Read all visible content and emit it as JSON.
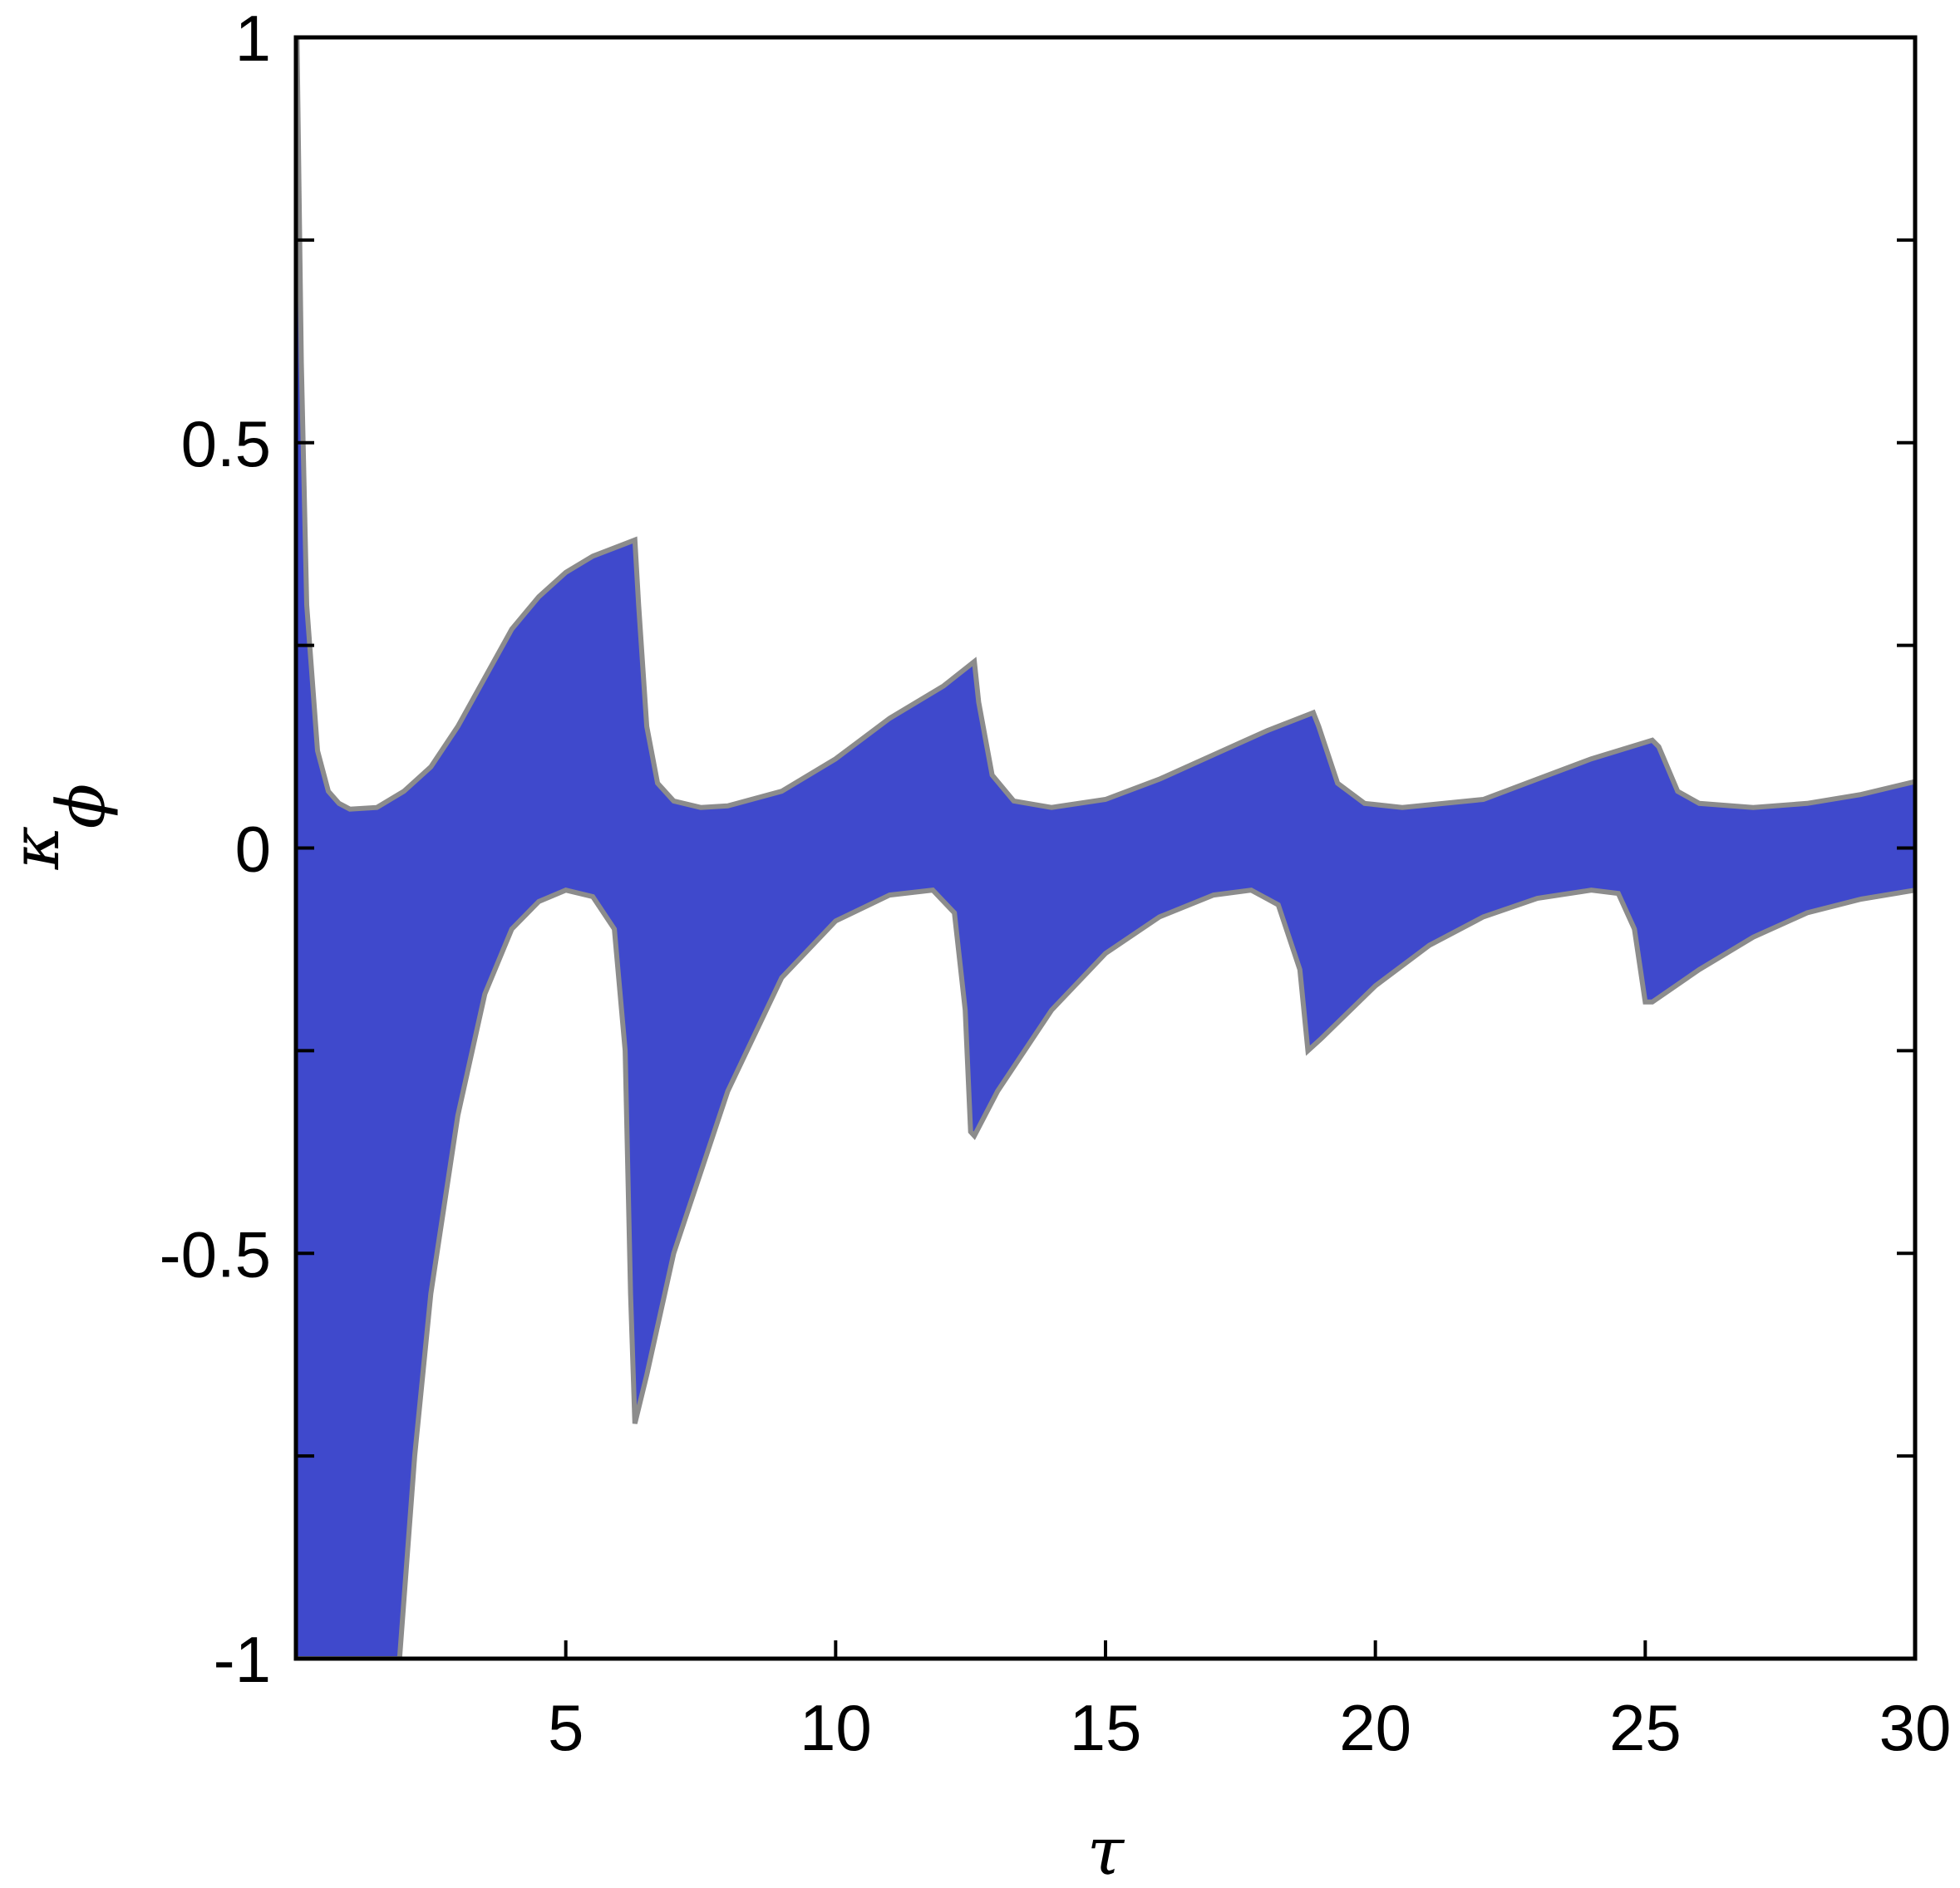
{
  "chart_data": {
    "type": "area",
    "title": "",
    "xlabel": "τ",
    "ylabel": "κ",
    "ylabel_sub": "ϕ",
    "xlim": [
      0,
      30
    ],
    "ylim": [
      -1,
      1
    ],
    "x_ticks": [
      5,
      10,
      15,
      20,
      25,
      30
    ],
    "x_tick_labels": [
      "5",
      "10",
      "15",
      "20",
      "25",
      "30"
    ],
    "y_ticks": [
      1,
      0.5,
      0,
      -0.5,
      -1
    ],
    "y_tick_labels": [
      "1",
      "0.5",
      "0",
      "-0.5",
      "-1"
    ],
    "y_minor_ticks": [
      0.75,
      0.25,
      -0.25,
      -0.75
    ],
    "grid": false,
    "fill_color": "#3f49cc",
    "edge_color": "#8c8c8c",
    "upper": {
      "x": [
        0.02,
        0.1,
        0.2,
        0.4,
        0.6,
        0.8,
        1,
        1.5,
        2,
        2.5,
        3,
        3.5,
        4,
        4.5,
        5,
        5.5,
        6.28,
        6.35,
        6.5,
        6.7,
        7,
        7.5,
        8,
        9,
        10,
        11,
        12,
        12.57,
        12.65,
        12.9,
        13.3,
        14,
        15,
        16,
        17,
        18,
        18.85,
        18.95,
        19.3,
        19.8,
        20.5,
        22,
        23,
        24,
        25.13,
        25.25,
        25.6,
        26,
        27,
        28,
        29,
        30
      ],
      "y": [
        1,
        0.6,
        0.3,
        0.12,
        0.07,
        0.055,
        0.048,
        0.05,
        0.07,
        0.1,
        0.15,
        0.21,
        0.27,
        0.31,
        0.34,
        0.36,
        0.38,
        0.3,
        0.15,
        0.08,
        0.058,
        0.05,
        0.052,
        0.07,
        0.11,
        0.16,
        0.2,
        0.23,
        0.18,
        0.09,
        0.058,
        0.05,
        0.06,
        0.085,
        0.115,
        0.145,
        0.167,
        0.15,
        0.08,
        0.055,
        0.05,
        0.06,
        0.085,
        0.11,
        0.133,
        0.125,
        0.07,
        0.055,
        0.05,
        0.055,
        0.066,
        0.082
      ]
    },
    "lower": {
      "x": [
        0,
        1.92,
        2.2,
        2.5,
        3,
        3.5,
        4,
        4.5,
        5,
        5.5,
        5.9,
        6.1,
        6.2,
        6.28,
        6.5,
        7,
        8,
        9,
        10,
        11,
        11.8,
        12.2,
        12.4,
        12.5,
        12.57,
        13,
        14,
        15,
        16,
        17,
        17.7,
        18.2,
        18.6,
        18.75,
        19,
        20,
        21,
        22,
        23,
        24,
        24.5,
        24.8,
        25,
        25.13,
        26,
        27,
        28,
        29,
        30
      ],
      "y": [
        -1,
        -1,
        -0.75,
        -0.55,
        -0.33,
        -0.18,
        -0.1,
        -0.066,
        -0.052,
        -0.06,
        -0.1,
        -0.25,
        -0.55,
        -0.71,
        -0.65,
        -0.5,
        -0.3,
        -0.16,
        -0.09,
        -0.058,
        -0.052,
        -0.08,
        -0.2,
        -0.35,
        -0.355,
        -0.3,
        -0.2,
        -0.13,
        -0.085,
        -0.058,
        -0.052,
        -0.07,
        -0.15,
        -0.25,
        -0.235,
        -0.17,
        -0.12,
        -0.085,
        -0.062,
        -0.052,
        -0.056,
        -0.1,
        -0.19,
        -0.19,
        -0.15,
        -0.11,
        -0.08,
        -0.063,
        -0.052
      ]
    }
  }
}
